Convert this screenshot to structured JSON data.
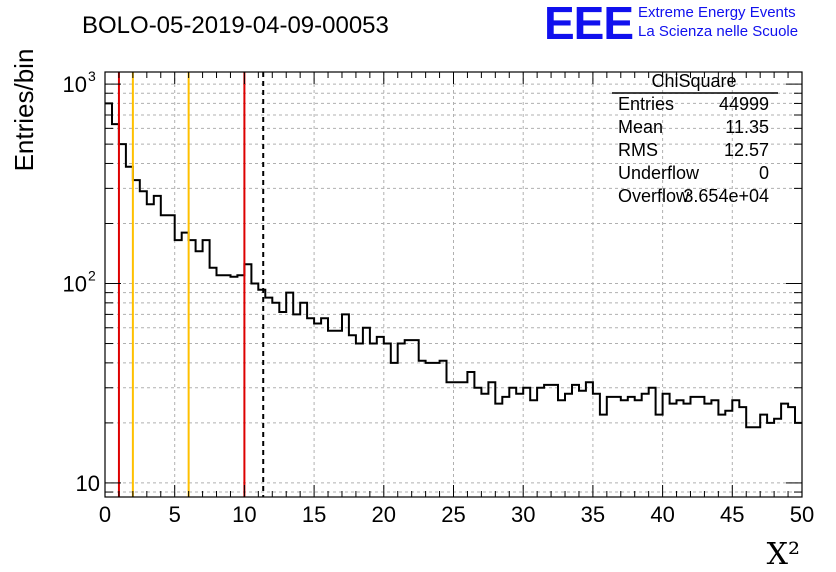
{
  "chart_data": {
    "type": "histogram",
    "title": "BOLO-05-2019-04-09-00053",
    "xlabel": "X²",
    "ylabel": "Entries/bin",
    "xlim": [
      0,
      50
    ],
    "ylim": [
      8.5,
      1150
    ],
    "yscale": "log",
    "grid": true,
    "x_ticks": [
      "0",
      "5",
      "10",
      "15",
      "20",
      "25",
      "30",
      "35",
      "40",
      "45",
      "50"
    ],
    "y_ticks": [
      {
        "value": 10,
        "label": "10"
      },
      {
        "value": 100,
        "label": "10",
        "exp": "2"
      },
      {
        "value": 1000,
        "label": "10",
        "exp": "3"
      }
    ],
    "bin_width": 0.5,
    "bin_start": 0,
    "counts": [
      800,
      630,
      500,
      385,
      330,
      290,
      250,
      275,
      220,
      220,
      165,
      180,
      165,
      145,
      165,
      120,
      110,
      110,
      108,
      110,
      125,
      100,
      93,
      85,
      80,
      72,
      90,
      70,
      80,
      67,
      63,
      67,
      58,
      58,
      70,
      55,
      50,
      60,
      50,
      54,
      50,
      40,
      50,
      52,
      52,
      41,
      40,
      40,
      41,
      32,
      32,
      32,
      36,
      30,
      28,
      32,
      25,
      27,
      30,
      28,
      30,
      26,
      30,
      31,
      31,
      26,
      28,
      31,
      29,
      32,
      28,
      22,
      27,
      27,
      26,
      27,
      26,
      28,
      30,
      22,
      28,
      25,
      26,
      25,
      27,
      27,
      25,
      26,
      22,
      23,
      26,
      24,
      19,
      19,
      22,
      20,
      21,
      25,
      24,
      20
    ],
    "vertical_lines": [
      {
        "x": 1,
        "color": "#dd0000",
        "style": "solid"
      },
      {
        "x": 2,
        "color": "#ffc000",
        "style": "solid"
      },
      {
        "x": 6,
        "color": "#ffc000",
        "style": "solid"
      },
      {
        "x": 10,
        "color": "#dd0000",
        "style": "solid"
      },
      {
        "x": 11.35,
        "color": "#000000",
        "style": "dashed"
      }
    ],
    "stats_box": {
      "title": "ChiSquare",
      "rows": [
        {
          "label": "Entries",
          "value": "44999"
        },
        {
          "label": "Mean",
          "value": "11.35"
        },
        {
          "label": "RMS",
          "value": "12.57"
        },
        {
          "label": "Underflow",
          "value": "0"
        },
        {
          "label": "Overflow",
          "value": "3.654e+04"
        }
      ]
    }
  },
  "logo": {
    "mark": "EEE",
    "line1": "Extreme Energy Events",
    "line2": "La Scienza nelle Scuole"
  },
  "colors": {
    "histogram": "#000000",
    "grid": "#b0b0b0",
    "logo": "#1010ee"
  }
}
